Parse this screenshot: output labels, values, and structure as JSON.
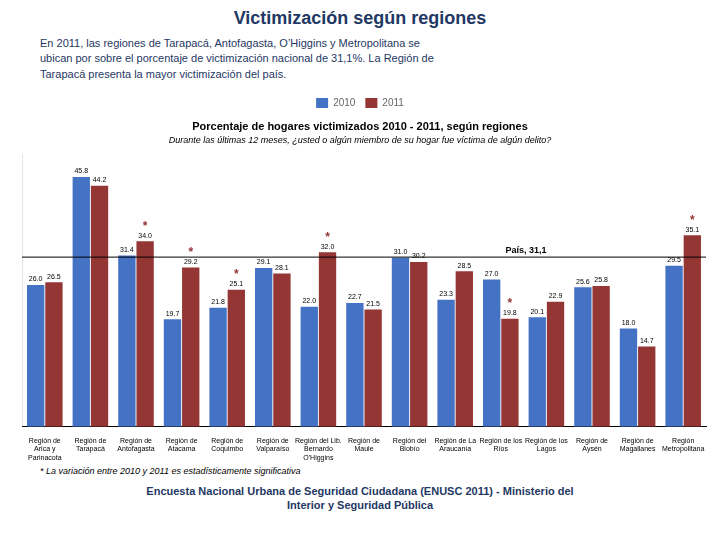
{
  "chart_data": {
    "type": "bar",
    "title": "Victimización según regiones",
    "subtitle": "En 2011, las regiones de Tarapacá, Antofagasta, O’Higgins y Metropolitana se\nubican por sobre el porcentaje de victimización nacional de 31,1%. La Región de\nTarapacá presenta la mayor victimización del país.",
    "chart_title": "Porcentaje de hogares victimizados 2010 - 2011, según regiones",
    "chart_subtitle": "Durante las últimas 12 meses, ¿usted o algún miembro de su hogar fue víctima de algún delito?",
    "footnote": "* La variación entre 2010 y 2011 es estadísticamente significativa",
    "footer": "Encuesta Nacional Urbana de Seguridad Ciudadana (ENUSC 2011) - Ministerio del\nInterior y Seguridad Pública",
    "categories": [
      "Región de\nArica y\nParinacota",
      "Región de\nTarapacá",
      "Región de\nAntofagasta",
      "Región de\nAtacama",
      "Región de\nCoquimbo",
      "Región de\nValparaíso",
      "Región del Lib.\nBernardo\nO'Higgins",
      "Región de\nMaule",
      "Región del\nBiobío",
      "Región de La\nAraucanía",
      "Región de los\nRíos",
      "Región de los\nLagos",
      "Región de\nAysén",
      "Región de\nMagallanes",
      "Región\nMetropolitana"
    ],
    "series": [
      {
        "name": "2010",
        "color": "#4472C4",
        "values": [
          26.0,
          45.8,
          31.4,
          19.7,
          21.8,
          29.1,
          22.0,
          22.7,
          31.0,
          23.3,
          27.0,
          20.1,
          25.6,
          18.0,
          29.5
        ],
        "value_labels": [
          "26.0",
          "45.8",
          "31.4",
          "19.7",
          "21.8",
          "29.1",
          "22.0",
          "22.7",
          "31.0",
          "23.3",
          "27.0",
          "20.1",
          "25.6",
          "18.0",
          "29.5"
        ]
      },
      {
        "name": "2011",
        "color": "#943634",
        "values": [
          26.5,
          44.2,
          34.0,
          29.2,
          25.1,
          28.1,
          32.0,
          21.5,
          30.2,
          28.5,
          19.8,
          22.9,
          25.8,
          14.7,
          35.1
        ],
        "value_labels": [
          "26.5",
          "44.2",
          "34.0",
          "29.2",
          "25.1",
          "28.1",
          "32.0",
          "21.5",
          "30.2",
          "28.5",
          "19.8",
          "22.9",
          "25.8",
          "14.7",
          "35.1"
        ]
      }
    ],
    "annotations": [
      {
        "text": "*",
        "series": "2011",
        "category": "Región de\nAntofagasta"
      },
      {
        "text": "*",
        "series": "2011",
        "category": "Región de\nAtacama"
      },
      {
        "text": "*",
        "series": "2011",
        "category": "Región de\nCoquimbo"
      },
      {
        "text": "*",
        "series": "2011",
        "category": "Región del Lib.\nBernardo\nO'Higgins"
      },
      {
        "text": "*",
        "series": "2011",
        "category": "Región de los\nRíos"
      },
      {
        "text": "*",
        "series": "2011",
        "category": "Región\nMetropolitana"
      }
    ],
    "hlines": [
      {
        "y": 31.1,
        "label": "País, 31,1",
        "color": "#000000"
      }
    ],
    "ylim": [
      0,
      50
    ],
    "grid": false,
    "legend": "top",
    "data_labels": true,
    "tick_labels": "x"
  }
}
